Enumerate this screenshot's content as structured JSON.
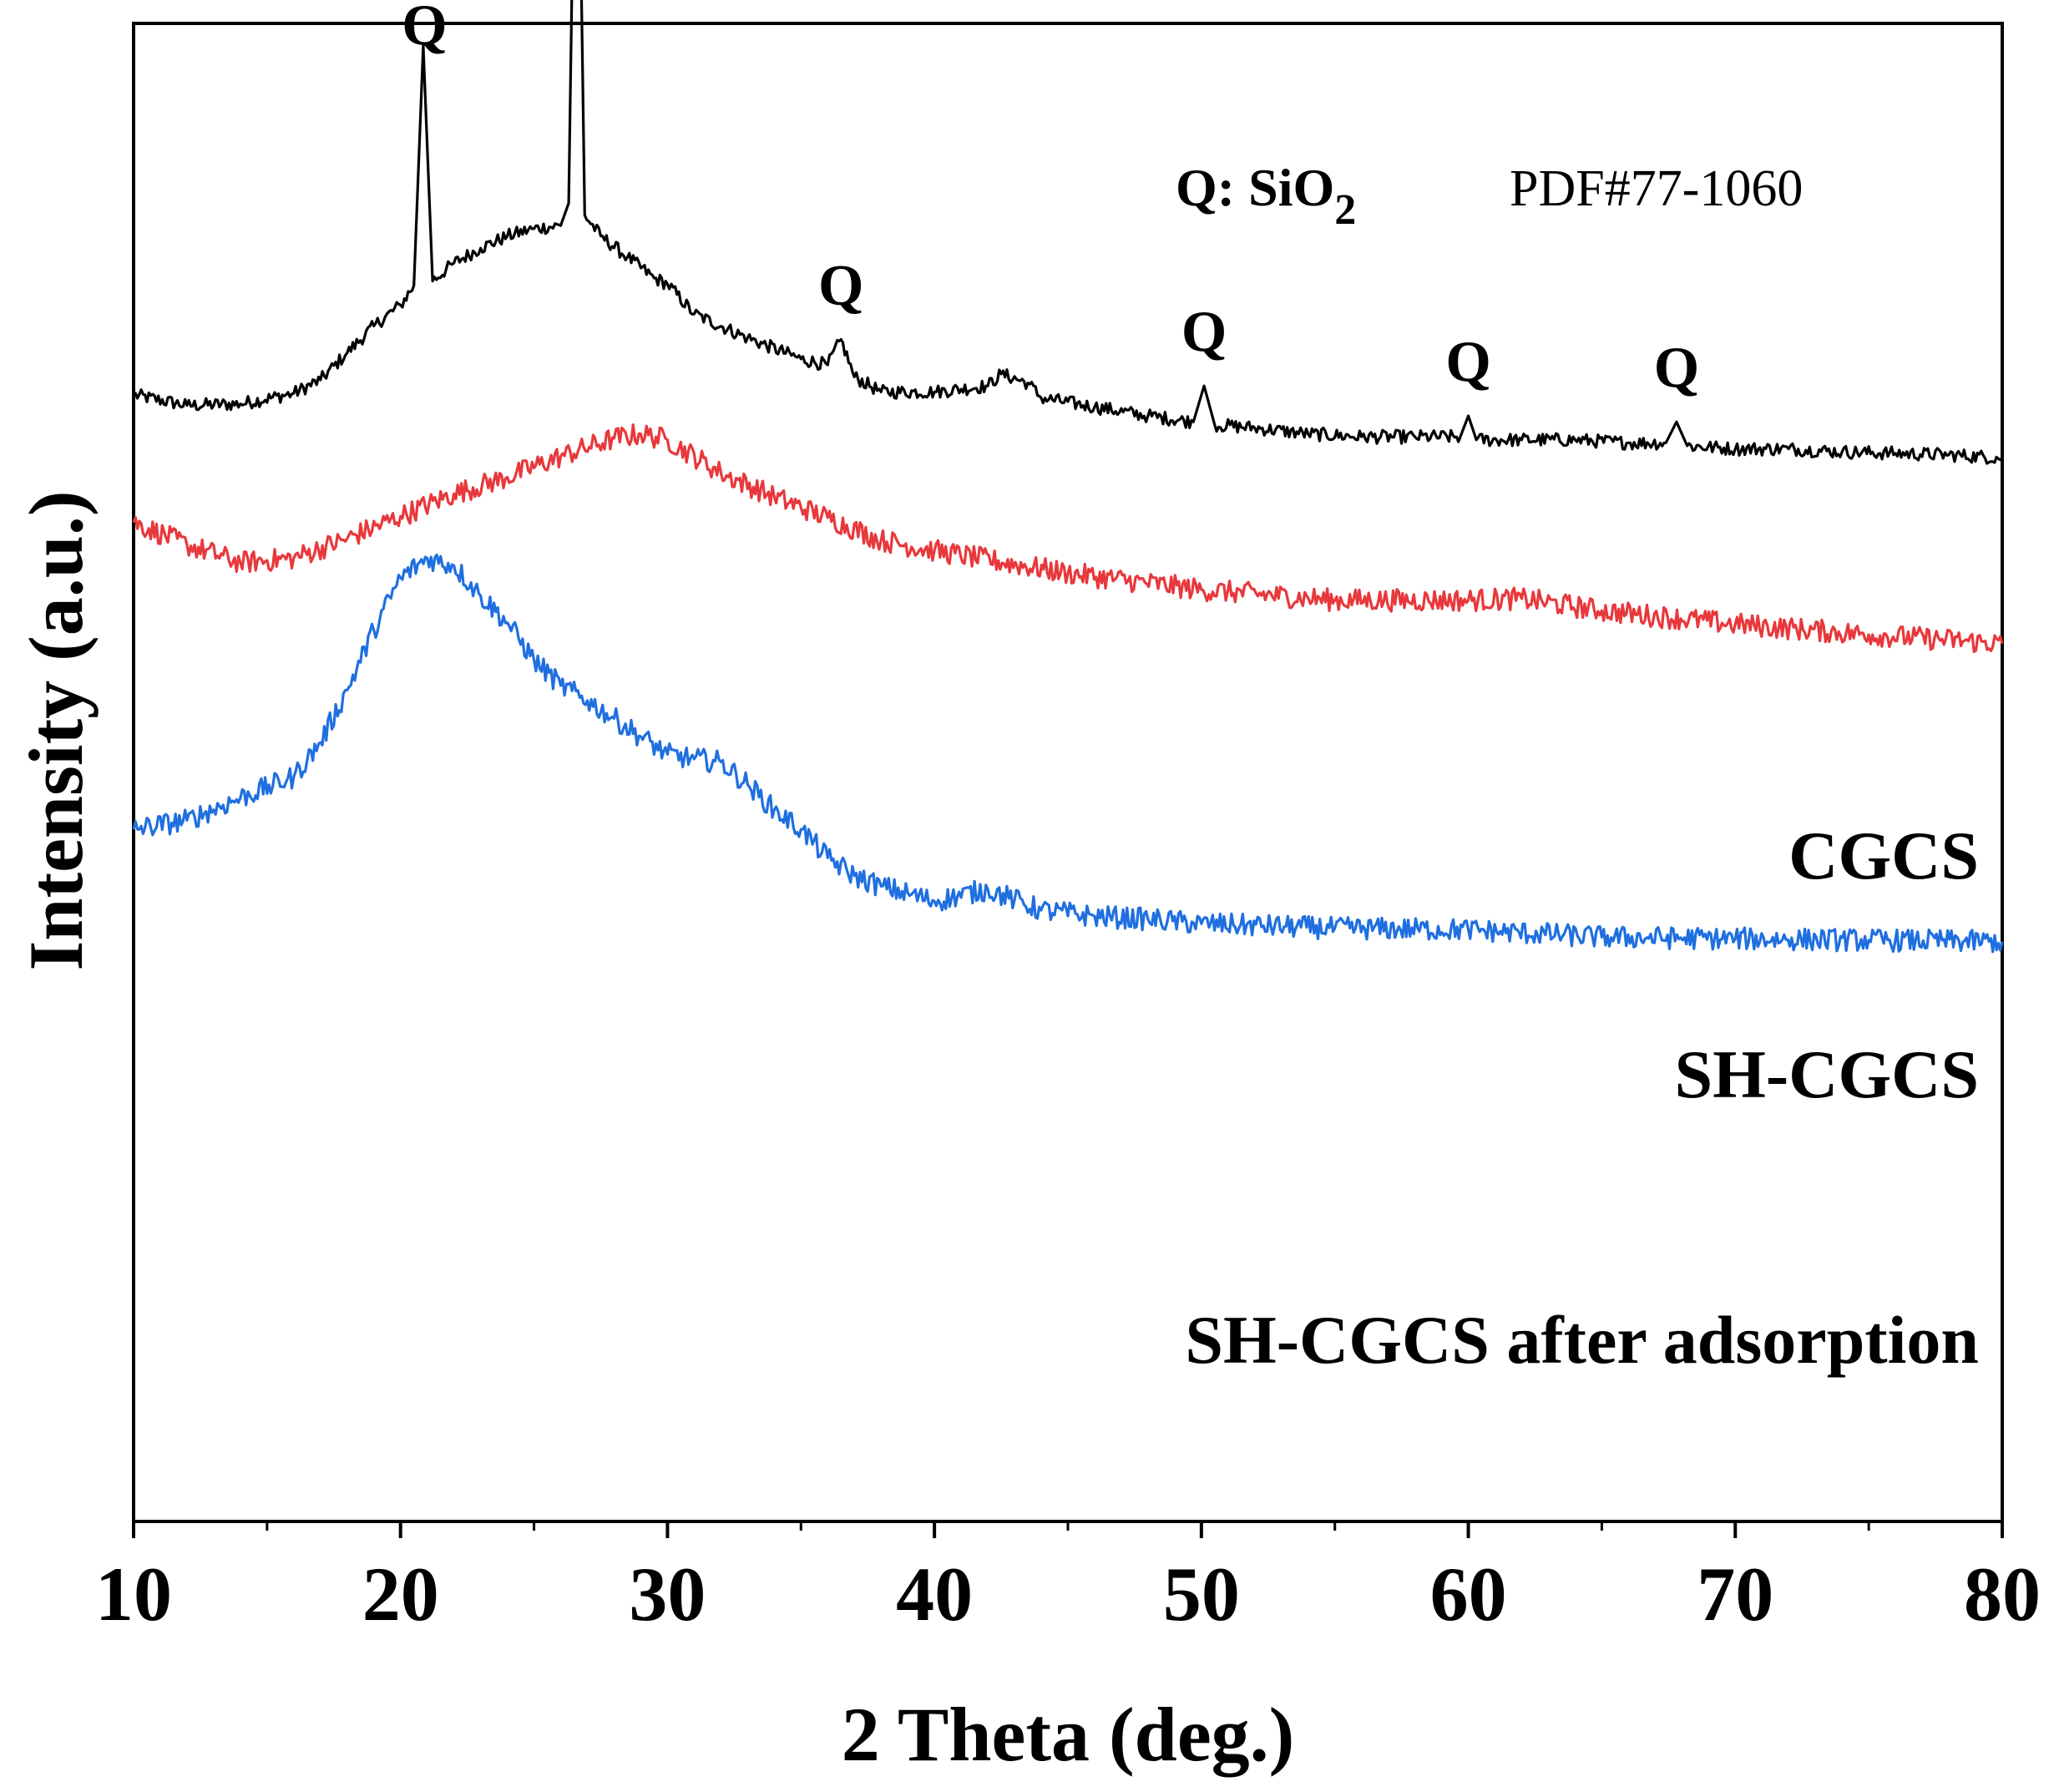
{
  "chart_data": {
    "type": "line",
    "xlabel": "2 Theta (deg.)",
    "ylabel": "Intensity (a.u.)",
    "xlim": [
      10,
      80
    ],
    "ylim": [
      0,
      100
    ],
    "xticks": [
      10,
      20,
      30,
      40,
      50,
      60,
      70,
      80
    ],
    "grid": false,
    "yticks_shown": false,
    "legend_note": {
      "phase_label": "Q: SiO",
      "phase_subscript": "2",
      "pdf": "PDF#77-1060"
    },
    "peak_marker": "Q",
    "peak_positions": [
      20.9,
      26.6,
      36.5,
      50.1,
      60.0,
      67.8
    ],
    "series": [
      {
        "name": "CGCS",
        "color": "#000000",
        "x": [
          10,
          12,
          14,
          16,
          17,
          18,
          19,
          20,
          20.5,
          20.85,
          21.2,
          22,
          23,
          24,
          25,
          26,
          26.3,
          26.6,
          26.9,
          27.5,
          28.5,
          29.5,
          30,
          31,
          33,
          35,
          36,
          36.5,
          37,
          38,
          40,
          42,
          42.5,
          43.5,
          44,
          46,
          48,
          49.7,
          50.1,
          50.5,
          52,
          54,
          56,
          58,
          59.7,
          60.0,
          60.3,
          62,
          64,
          66,
          67.4,
          67.8,
          68.2,
          70,
          72,
          74,
          76,
          78,
          80
        ],
        "y": [
          75.2,
          74.5,
          74.6,
          75.3,
          76.2,
          78,
          79.8,
          81.2,
          82.5,
          98.5,
          82.8,
          84,
          85,
          85.8,
          86.3,
          86.5,
          88,
          123.5,
          87.2,
          85.8,
          84.4,
          83,
          82.6,
          80.6,
          79,
          77.6,
          77.2,
          78.9,
          76.4,
          75.4,
          75.4,
          75.8,
          76.6,
          76,
          75,
          74.4,
          73.8,
          73.4,
          75.8,
          73.2,
          73,
          72.6,
          72.4,
          72.4,
          72.4,
          73.8,
          72.2,
          72.2,
          72.2,
          72,
          72,
          73.4,
          71.8,
          71.6,
          71.6,
          71.4,
          71.3,
          71.2,
          71
        ]
      },
      {
        "name": "SH-CGCS",
        "color": "#e8383c",
        "x": [
          10,
          12,
          14,
          16,
          18,
          20,
          22,
          24,
          26,
          28,
          29,
          30,
          32,
          34,
          36,
          38,
          40,
          45,
          50,
          55,
          60,
          62,
          65,
          70,
          75,
          80
        ],
        "y": [
          66.7,
          65.2,
          64,
          64.3,
          65.6,
          67.1,
          68.6,
          69.7,
          71.1,
          72.3,
          72.6,
          72.2,
          70,
          68.4,
          67,
          65.5,
          64.8,
          63.3,
          62.2,
          61.5,
          61.5,
          61.6,
          60.8,
          59.9,
          59.2,
          58.6
        ]
      },
      {
        "name": "SH-CGCS after adsorption",
        "color": "#1f6fe0",
        "x": [
          10,
          12,
          14,
          16,
          17,
          18,
          19,
          20,
          21,
          22,
          23,
          24,
          25,
          26,
          27,
          28,
          29,
          30,
          31,
          32,
          33,
          34,
          35,
          36,
          37,
          38,
          40,
          42,
          43,
          44,
          46,
          48,
          50,
          55,
          60,
          65,
          70,
          75,
          80
        ],
        "y": [
          46.2,
          46.8,
          48.3,
          49.7,
          52,
          55.5,
          59.5,
          63,
          64.3,
          63.8,
          61.8,
          60,
          57.5,
          55.8,
          54.8,
          53.6,
          52.4,
          51.2,
          50.9,
          50.7,
          49.2,
          47.5,
          46.2,
          44.3,
          43.1,
          42.4,
          41.4,
          42.2,
          41.5,
          40.8,
          40.4,
          40.2,
          39.9,
          39.6,
          39.5,
          39,
          38.9,
          38.8,
          38.7
        ]
      }
    ]
  }
}
